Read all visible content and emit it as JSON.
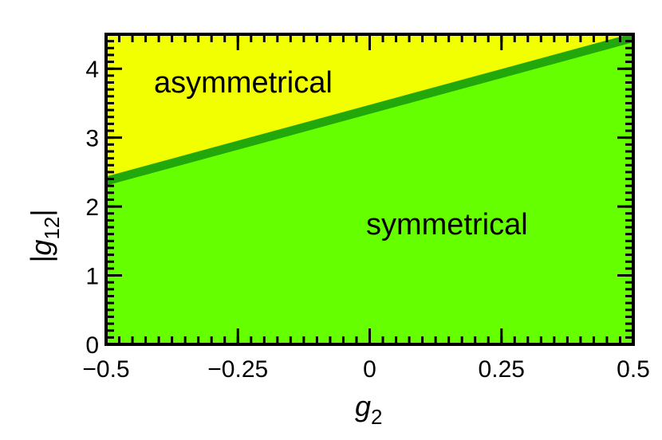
{
  "chart_data": {
    "type": "area",
    "title": "",
    "x": [
      -0.5,
      0.5
    ],
    "x_axis": {
      "label": "g",
      "label_subscript": "2",
      "ticks": [
        -0.5,
        -0.25,
        0,
        0.25,
        0.5
      ],
      "tick_labels": [
        "−0.5",
        "−0.25",
        "0",
        "0.25",
        "0.5"
      ],
      "range": [
        -0.5,
        0.5
      ]
    },
    "y_axis": {
      "label_prefix": "|g",
      "label_subscript": "12",
      "label_suffix": "|",
      "ticks": [
        0,
        1,
        2,
        3,
        4
      ],
      "tick_labels": [
        "0",
        "1",
        "2",
        "3",
        "4"
      ],
      "range": [
        0,
        4.5
      ]
    },
    "series": [
      {
        "values": [
          2.37,
          4.45
        ]
      }
    ],
    "regions": [
      {
        "label": "asymmetrical",
        "color": "#f2ff00"
      },
      {
        "label": "symmetrical",
        "color": "#66ff00"
      }
    ],
    "boundary_color": "#22a80a",
    "grid": false
  }
}
